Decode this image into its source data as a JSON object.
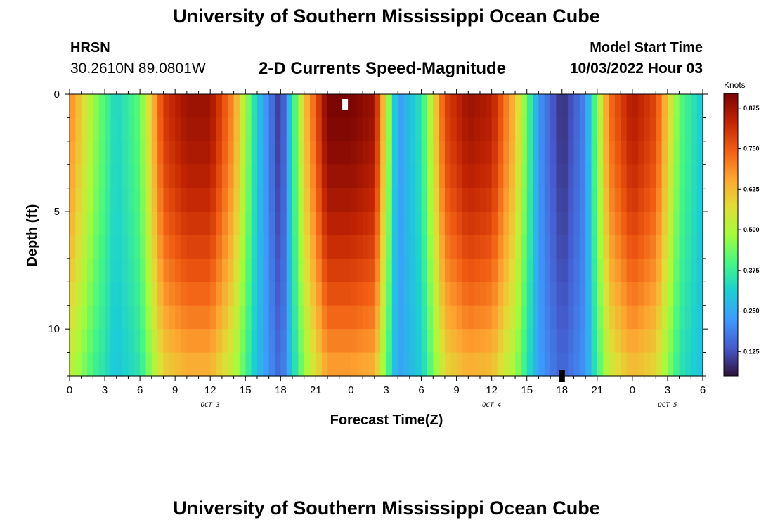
{
  "header": {
    "title": "University of Southern Mississippi Ocean Cube",
    "station": "HRSN",
    "coords": "30.2610N  89.0801W",
    "subtitle": "2-D Currents Speed-Magnitude",
    "model_start_label": "Model Start Time",
    "model_start_value": "10/03/2022 Hour 03"
  },
  "footer": {
    "title": "University of Southern Mississippi Ocean Cube"
  },
  "chart_data": {
    "type": "heatmap",
    "title": "2-D Currents Speed-Magnitude",
    "xlabel": "Forecast Time(Z)",
    "ylabel": "Depth (ft)",
    "x_range_hours": [
      0,
      54
    ],
    "x_tick_labels": [
      "0",
      "3",
      "6",
      "9",
      "12",
      "15",
      "18",
      "21",
      "0",
      "3",
      "6",
      "9",
      "12",
      "15",
      "18",
      "21",
      "0",
      "3",
      "6"
    ],
    "date_labels": [
      {
        "text": "OCT 3",
        "at_hour": 12
      },
      {
        "text": "OCT 4",
        "at_hour": 36
      },
      {
        "text": "OCT 5",
        "at_hour": 51
      }
    ],
    "ylim": [
      0,
      12
    ],
    "y_tick_labels": [
      "0",
      "5",
      "10"
    ],
    "y_tick_values": [
      0,
      5,
      10
    ],
    "colorbar": {
      "unit": "Knots",
      "min": 0.05,
      "max": 0.92,
      "tick_values": [
        0.125,
        0.25,
        0.375,
        0.5,
        0.625,
        0.75,
        0.875
      ],
      "tick_labels": [
        "0.125",
        "0.250",
        "0.375",
        "0.500",
        "0.625",
        "0.750",
        "0.875"
      ],
      "colormap": "turbo"
    },
    "depth_rows": [
      0.5,
      1.5,
      2.5,
      3.5,
      4.5,
      5.5,
      6.5,
      7.5,
      8.5,
      9.5,
      10.5,
      11.5,
      12
    ],
    "surface_speed_profile_hours": [
      0,
      2,
      4,
      6,
      8,
      10,
      12,
      14,
      16,
      18,
      20,
      22,
      24,
      26,
      28,
      30,
      32,
      34,
      36,
      38,
      40,
      42,
      44,
      46,
      48,
      50,
      52,
      54
    ],
    "surface_speed_profile_knots": [
      0.7,
      0.48,
      0.32,
      0.42,
      0.8,
      0.88,
      0.88,
      0.68,
      0.3,
      0.08,
      0.6,
      0.92,
      0.92,
      0.88,
      0.22,
      0.35,
      0.78,
      0.88,
      0.85,
      0.62,
      0.22,
      0.08,
      0.2,
      0.72,
      0.86,
      0.78,
      0.42,
      0.3
    ],
    "missing_cells": [
      {
        "hour": 23.5,
        "depth": 0.3,
        "fill": "white"
      },
      {
        "hour": 42,
        "depth": 11.8,
        "fill": "black"
      }
    ]
  }
}
